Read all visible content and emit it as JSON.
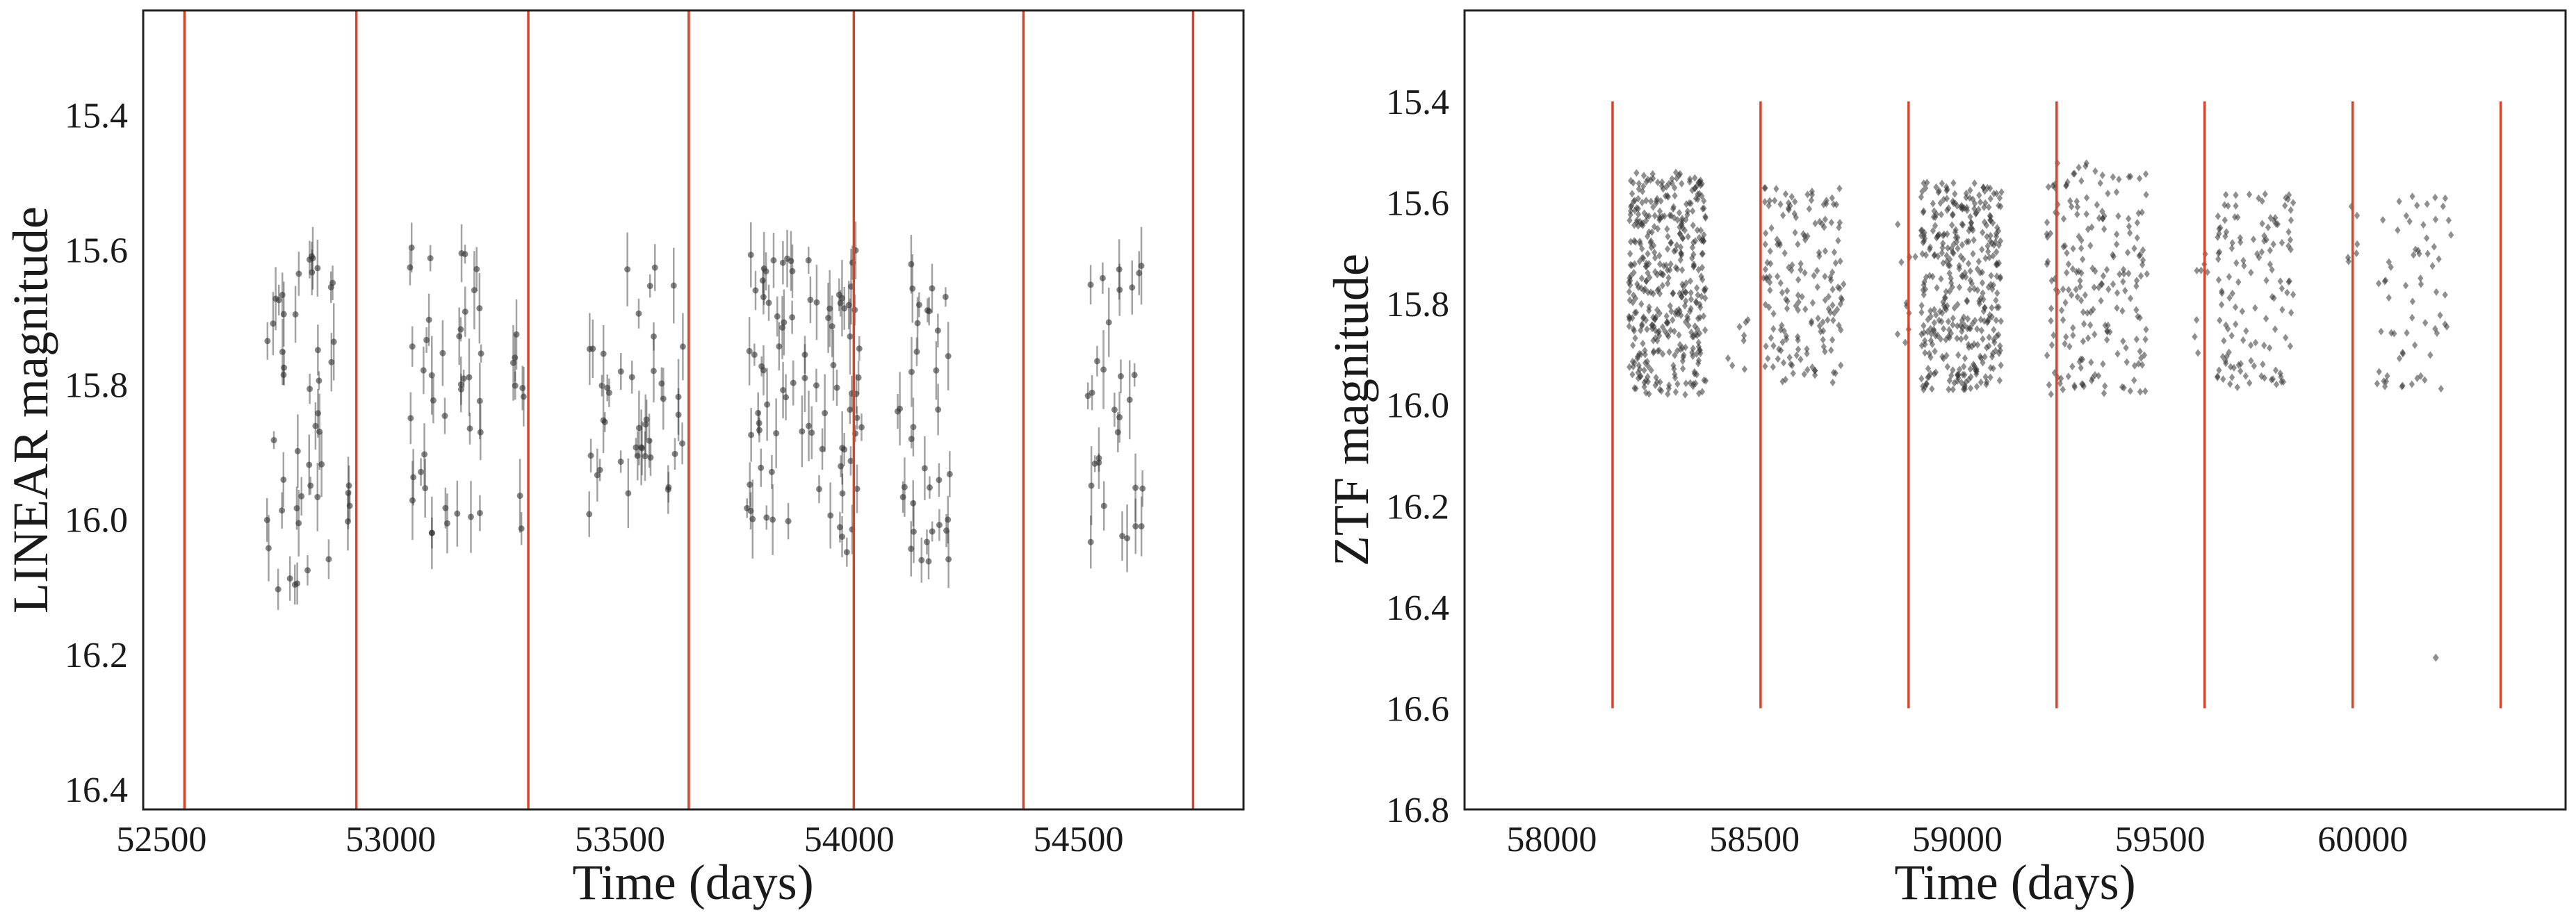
{
  "chart_data": [
    {
      "type": "scatter",
      "xlabel": "Time (days)",
      "ylabel": "LINEAR magnitude",
      "xlim": [
        52460,
        54860
      ],
      "ylim": [
        16.43,
        15.245
      ],
      "y_inverted": true,
      "xticks": [
        52500,
        53000,
        53500,
        54000,
        54500
      ],
      "xtick_labels": [
        "52500",
        "53000",
        "53500",
        "54000",
        "54500"
      ],
      "yticks": [
        15.4,
        15.6,
        15.8,
        16.0,
        16.2,
        16.4
      ],
      "ytick_labels": [
        "15.4",
        "15.6",
        "15.8",
        "16.0",
        "16.2",
        "16.4"
      ],
      "grid": false,
      "marker": "point with vertical error bar",
      "colors": {
        "points": "#333333",
        "vlines": "#d6452b"
      },
      "vertical_lines": {
        "x": [
          52550,
          52925,
          53300,
          53650,
          54010,
          54380,
          54750
        ],
        "full_height": true
      },
      "observing_seasons": [
        {
          "x_start": 52730,
          "x_end": 52885,
          "y_min": 15.6,
          "y_max": 16.12,
          "n": 45
        },
        {
          "x_start": 52900,
          "x_end": 52915,
          "y_min": 15.93,
          "y_max": 16.02,
          "n": 4
        },
        {
          "x_start": 53040,
          "x_end": 53200,
          "y_min": 15.58,
          "y_max": 16.03,
          "n": 40
        },
        {
          "x_start": 53260,
          "x_end": 53290,
          "y_min": 15.6,
          "y_max": 16.02,
          "n": 8
        },
        {
          "x_start": 53430,
          "x_end": 53480,
          "y_min": 15.7,
          "y_max": 16.0,
          "n": 12
        },
        {
          "x_start": 53500,
          "x_end": 53640,
          "y_min": 15.62,
          "y_max": 15.98,
          "n": 30
        },
        {
          "x_start": 53770,
          "x_end": 54030,
          "y_min": 15.6,
          "y_max": 16.05,
          "n": 85
        },
        {
          "x_start": 54100,
          "x_end": 54220,
          "y_min": 15.62,
          "y_max": 16.08,
          "n": 35
        },
        {
          "x_start": 54520,
          "x_end": 54640,
          "y_min": 15.58,
          "y_max": 16.04,
          "n": 30
        }
      ]
    },
    {
      "type": "scatter",
      "xlabel": "Time (days)",
      "ylabel": "ZTF magnitude",
      "xlim": [
        57785,
        60500
      ],
      "ylim": [
        16.8,
        15.22
      ],
      "y_inverted": true,
      "xticks": [
        58000,
        58500,
        59000,
        59500,
        60000
      ],
      "xtick_labels": [
        "58000",
        "58500",
        "59000",
        "59500",
        "60000"
      ],
      "yticks": [
        15.4,
        15.6,
        15.8,
        16.0,
        16.2,
        16.4,
        16.6,
        16.8
      ],
      "ytick_labels": [
        "15.4",
        "15.6",
        "15.8",
        "16.0",
        "16.2",
        "16.4",
        "16.6",
        "16.8"
      ],
      "grid": false,
      "marker": "diamond",
      "colors": {
        "points": "#333333",
        "vlines": "#d6452b"
      },
      "vertical_lines": {
        "x": [
          58150,
          58515,
          58880,
          59245,
          59610,
          59975,
          60340
        ],
        "y_range": [
          15.4,
          16.6
        ]
      },
      "observing_seasons": [
        {
          "x_start": 58190,
          "x_end": 58380,
          "y_min": 15.54,
          "y_max": 15.98,
          "n": 420
        },
        {
          "x_start": 58410,
          "x_end": 58500,
          "y_min": 15.8,
          "y_max": 15.95,
          "n": 8
        },
        {
          "x_start": 58520,
          "x_end": 58720,
          "y_min": 15.57,
          "y_max": 15.96,
          "n": 170
        },
        {
          "x_start": 58850,
          "x_end": 58900,
          "y_min": 15.6,
          "y_max": 15.9,
          "n": 10
        },
        {
          "x_start": 58910,
          "x_end": 59110,
          "y_min": 15.56,
          "y_max": 15.97,
          "n": 380
        },
        {
          "x_start": 59220,
          "x_end": 59470,
          "y_min": 15.52,
          "y_max": 15.98,
          "n": 200
        },
        {
          "x_start": 59580,
          "x_end": 59620,
          "y_min": 15.65,
          "y_max": 15.9,
          "n": 8
        },
        {
          "x_start": 59640,
          "x_end": 59830,
          "y_min": 15.58,
          "y_max": 15.97,
          "n": 130
        },
        {
          "x_start": 59960,
          "x_end": 59990,
          "y_min": 15.6,
          "y_max": 15.72,
          "n": 6
        },
        {
          "x_start": 60030,
          "x_end": 60220,
          "y_min": 15.58,
          "y_max": 15.97,
          "n": 65
        }
      ],
      "outliers": [
        {
          "x": 60180,
          "y": 16.5
        }
      ]
    }
  ]
}
